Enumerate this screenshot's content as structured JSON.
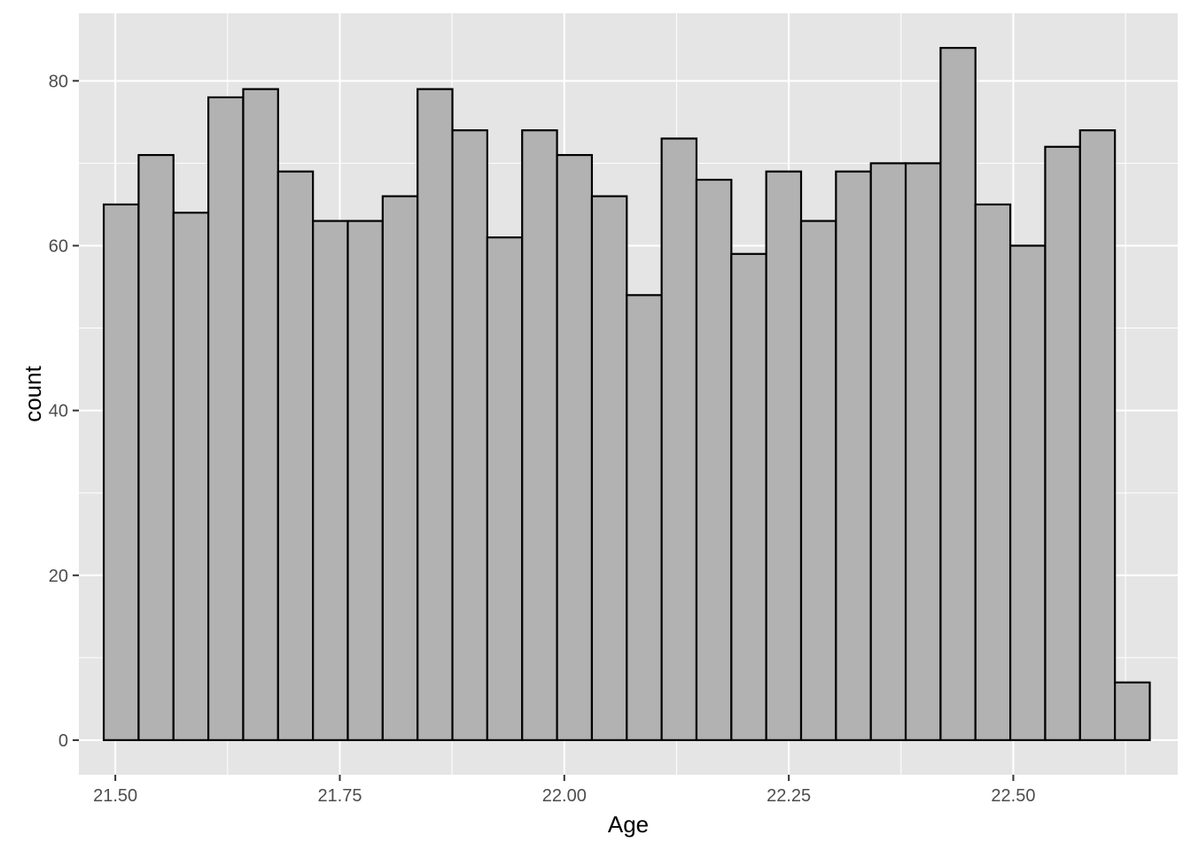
{
  "chart_data": {
    "type": "bar",
    "subtype": "histogram",
    "title": "",
    "xlabel": "Age",
    "ylabel": "count",
    "x_ticks": [
      "21.50",
      "21.75",
      "22.00",
      "22.25",
      "22.50"
    ],
    "x_tick_values": [
      21.5,
      21.75,
      22.0,
      22.25,
      22.5
    ],
    "y_ticks": [
      "0",
      "20",
      "40",
      "60",
      "80"
    ],
    "y_tick_values": [
      0,
      20,
      40,
      60,
      80
    ],
    "xlim": [
      21.4594,
      22.6831
    ],
    "ylim": [
      -4.2,
      88.2
    ],
    "grid": true,
    "bin_start": 21.4871,
    "bin_width": 0.03883,
    "values": [
      65,
      71,
      64,
      78,
      79,
      69,
      63,
      63,
      66,
      79,
      74,
      61,
      74,
      71,
      66,
      54,
      73,
      68,
      59,
      69,
      63,
      69,
      70,
      70,
      84,
      65,
      60,
      72,
      74,
      7
    ],
    "colors": {
      "panel": "#e5e5e5",
      "grid": "#ffffff",
      "bar_fill": "#b2b2b2",
      "bar_stroke": "#000000"
    }
  }
}
